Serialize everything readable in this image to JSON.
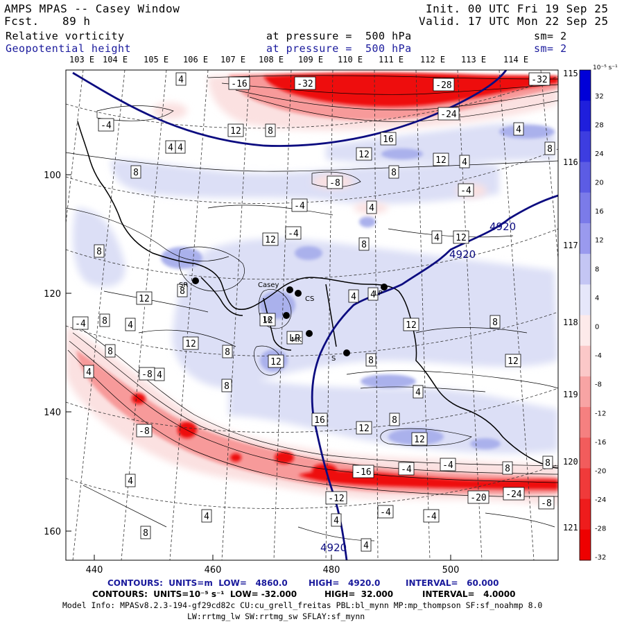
{
  "header": {
    "title": "AMPS MPAS -- Casey Window",
    "fcst_label": "Fcst.",
    "fcst_value": "89 h",
    "init": "Init. 00 UTC Fri 19 Sep 25",
    "valid": "Valid. 17 UTC Mon 22 Sep 25",
    "field1": "Relative vorticity",
    "field1_pressure": "at pressure =  500 hPa",
    "field1_sm": "sm= 2",
    "field2": "Geopotential height",
    "field2_pressure": "at pressure =  500 hPa",
    "field2_sm": "sm= 2"
  },
  "map": {
    "top_lon_labels": [
      "103 E",
      "104 E",
      "105 E",
      "106 E",
      "107 E",
      "108 E",
      "109 E",
      "110 E",
      "111 E",
      "112 E",
      "113 E",
      "114 E"
    ],
    "right_lon_labels": [
      "115 E",
      "116 E",
      "117 E",
      "118 E",
      "119 E",
      "120 E",
      "121 E"
    ],
    "x_ticks": [
      "440",
      "460",
      "480",
      "500"
    ],
    "y_ticks": [
      "100",
      "120",
      "140",
      "160"
    ],
    "stations": [
      "Casey",
      "CS",
      "LP",
      "SR",
      "LK",
      "MK",
      "S"
    ],
    "height_contour_labels": [
      "4920",
      "4920",
      "4920"
    ],
    "vorticity_labels": [
      "4",
      "-16",
      "-32",
      "-28",
      "-32",
      "4",
      "-24",
      "-4",
      "12",
      "8",
      "16",
      "4",
      "4",
      "12",
      "8",
      "12",
      "4",
      "8",
      "-8",
      "-4",
      "-4",
      "4",
      "8",
      "-4",
      "12",
      "8",
      "4",
      "12",
      "8",
      "8",
      "12",
      "4",
      "4",
      "12",
      "LP",
      "12",
      "8",
      "-4",
      "8",
      "4",
      "12",
      "8",
      "12",
      "8",
      "12",
      "8",
      "-8",
      "4",
      "8",
      "4",
      "12",
      "8",
      "12",
      "-8",
      "16",
      "8",
      "-4",
      "-4",
      "8",
      "-16",
      "-12",
      "-20",
      "-24",
      "-8",
      "4",
      "-4",
      "-4",
      "4",
      "4",
      "4",
      "8",
      "4"
    ]
  },
  "colorbar": {
    "unit": "10⁻⁵ s⁻¹",
    "labels": [
      "32",
      "28",
      "24",
      "20",
      "16",
      "12",
      "8",
      "4",
      "0",
      "-4",
      "-8",
      "-12",
      "-16",
      "-20",
      "-24",
      "-28",
      "-32"
    ],
    "colors": {
      "blue_strong": "#0000d8",
      "blue_light": "#d6d9f5",
      "red_strong": "#ef0000",
      "red_light": "#fbe1e1"
    }
  },
  "footer": {
    "line1_a": "CONTOURS:  UNITS=m  LOW=   4860.0",
    "line1_b": "HIGH=   4920.0",
    "line1_c": "INTERVAL=   60.000",
    "line2_a": "CONTOURS:  UNITS=10⁻⁵ s⁻¹  LOW= -32.000",
    "line2_b": "HIGH=  32.000",
    "line2_c": "INTERVAL=   4.0000",
    "line3": "Model Info: MPASv8.2.3-194-gf29cd82c CU:cu_grell_freitas PBL:bl_mynn MP:mp_thompson SF:sf_noahmp 8.0",
    "line4": "LW:rrtmg_lw SW:rrtmg_sw SFLAY:sf_mynn"
  }
}
